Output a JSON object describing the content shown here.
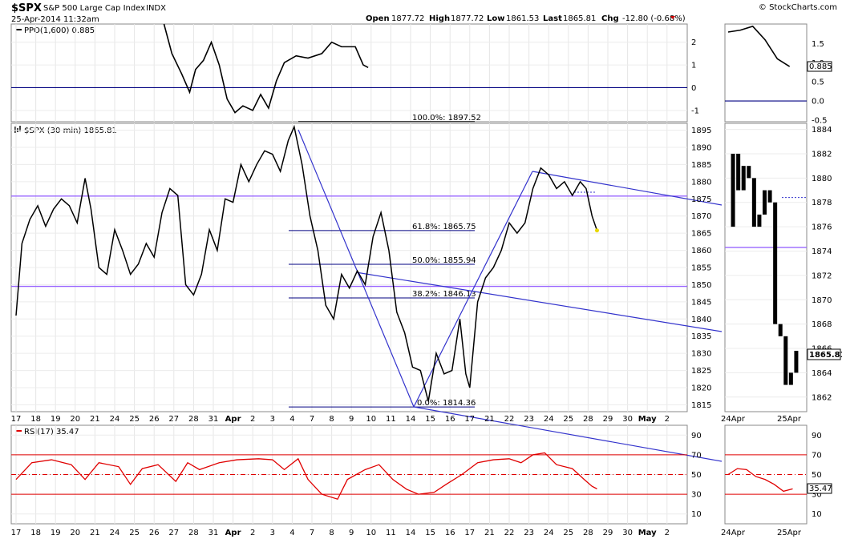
{
  "header": {
    "symbol": "$SPX",
    "name": "S&P 500 Large Cap Index",
    "exchange": "INDX",
    "date": "25-Apr-2014 11:32am",
    "copyright": "© StockCharts.com",
    "ohlc": {
      "open_label": "Open",
      "open": "1877.72",
      "high_label": "High",
      "high": "1877.72",
      "low_label": "Low",
      "low": "1861.53",
      "last_label": "Last",
      "last": "1865.81",
      "chg_label": "Chg",
      "chg": "-12.80 (-0.68%)"
    }
  },
  "colors": {
    "price": "#000000",
    "blue_lines": "#3333cc",
    "purple_lines": "#9966ff",
    "rsi": "#e00000",
    "ppo": "#000000"
  },
  "chart_data": [
    {
      "panel": "ppo",
      "type": "line",
      "legend": "PPO(1,600) 0.885",
      "value_label": "0.885",
      "ylim": [
        -1.5,
        2.8
      ],
      "yticks": [
        2,
        1,
        0,
        -1
      ],
      "side_yticks": [
        1.5,
        1.0,
        0.5,
        0.0,
        -0.5
      ],
      "series": [
        {
          "values": [
            [
              7.5,
              2.8
            ],
            [
              7.9,
              1.5
            ],
            [
              8.4,
              0.6
            ],
            [
              8.8,
              -0.2
            ],
            [
              9.1,
              0.8
            ],
            [
              9.5,
              1.2
            ],
            [
              9.9,
              2.0
            ],
            [
              10.3,
              1.0
            ],
            [
              10.7,
              -0.5
            ],
            [
              11.1,
              -1.1
            ],
            [
              11.5,
              -0.8
            ],
            [
              12.0,
              -1.0
            ],
            [
              12.4,
              -0.3
            ],
            [
              12.8,
              -0.9
            ],
            [
              13.2,
              0.3
            ],
            [
              13.6,
              1.1
            ],
            [
              14.2,
              1.4
            ],
            [
              14.8,
              1.3
            ],
            [
              15.5,
              1.5
            ],
            [
              16.0,
              2.0
            ],
            [
              16.5,
              1.8
            ],
            [
              17.2,
              1.8
            ],
            [
              17.6,
              1.0
            ],
            [
              17.85,
              0.885
            ]
          ]
        }
      ],
      "side_series": [
        {
          "values": [
            [
              0,
              1.8
            ],
            [
              1,
              1.85
            ],
            [
              2,
              1.95
            ],
            [
              3,
              1.6
            ],
            [
              4,
              1.1
            ],
            [
              5,
              0.9
            ]
          ]
        }
      ]
    },
    {
      "panel": "price",
      "type": "line",
      "legend": "$SPX (30 min) 1865.81",
      "last_value": "1865.81",
      "ylim": [
        1813,
        1897
      ],
      "yticks": [
        1895,
        1890,
        1885,
        1880,
        1875,
        1870,
        1865,
        1860,
        1855,
        1850,
        1845,
        1840,
        1835,
        1830,
        1825,
        1820,
        1815
      ],
      "side_ylim": [
        1860.8,
        1884.5
      ],
      "side_yticks": [
        1884,
        1882,
        1880,
        1878,
        1876,
        1874,
        1872,
        1870,
        1868,
        1866,
        1864,
        1862
      ],
      "x_labels": [
        "17",
        "18",
        "19",
        "20",
        "21",
        "24",
        "25",
        "26",
        "27",
        "28",
        "31",
        "Apr",
        "2",
        "3",
        "4",
        "7",
        "8",
        "9",
        "10",
        "11",
        "14",
        "15",
        "16",
        "17",
        "21",
        "22",
        "23",
        "24",
        "25",
        "28",
        "29",
        "30",
        "May",
        "2"
      ],
      "side_x_labels": [
        "24Apr",
        "25Apr"
      ],
      "series": [
        {
          "name": "$SPX",
          "values": [
            [
              0,
              1841
            ],
            [
              0.3,
              1862
            ],
            [
              0.7,
              1869
            ],
            [
              1.1,
              1873
            ],
            [
              1.5,
              1867
            ],
            [
              1.9,
              1872
            ],
            [
              2.3,
              1875
            ],
            [
              2.7,
              1873
            ],
            [
              3.1,
              1868
            ],
            [
              3.5,
              1881
            ],
            [
              3.8,
              1872
            ],
            [
              4.2,
              1855
            ],
            [
              4.6,
              1853
            ],
            [
              5.0,
              1866
            ],
            [
              5.4,
              1860
            ],
            [
              5.8,
              1853
            ],
            [
              6.2,
              1856
            ],
            [
              6.6,
              1862
            ],
            [
              7.0,
              1858
            ],
            [
              7.4,
              1871
            ],
            [
              7.8,
              1878
            ],
            [
              8.2,
              1876
            ],
            [
              8.6,
              1850
            ],
            [
              9.0,
              1847
            ],
            [
              9.4,
              1853
            ],
            [
              9.8,
              1866
            ],
            [
              10.2,
              1860
            ],
            [
              10.6,
              1875
            ],
            [
              11.0,
              1874
            ],
            [
              11.4,
              1885
            ],
            [
              11.8,
              1880
            ],
            [
              12.2,
              1885
            ],
            [
              12.6,
              1889
            ],
            [
              13.0,
              1888
            ],
            [
              13.4,
              1883
            ],
            [
              13.8,
              1892
            ],
            [
              14.1,
              1896
            ],
            [
              14.5,
              1885
            ],
            [
              14.9,
              1870
            ],
            [
              15.3,
              1860
            ],
            [
              15.7,
              1844
            ],
            [
              16.1,
              1840
            ],
            [
              16.5,
              1853
            ],
            [
              16.9,
              1849
            ],
            [
              17.3,
              1854
            ],
            [
              17.7,
              1850
            ],
            [
              18.1,
              1864
            ],
            [
              18.5,
              1871
            ],
            [
              18.9,
              1860
            ],
            [
              19.3,
              1842
            ],
            [
              19.7,
              1836
            ],
            [
              20.1,
              1826
            ],
            [
              20.5,
              1825
            ],
            [
              20.9,
              1816
            ],
            [
              21.3,
              1830
            ],
            [
              21.7,
              1824
            ],
            [
              22.1,
              1825
            ],
            [
              22.5,
              1840
            ],
            [
              22.8,
              1824
            ],
            [
              23.0,
              1820
            ],
            [
              23.4,
              1845
            ],
            [
              23.8,
              1852
            ],
            [
              24.2,
              1855
            ],
            [
              24.6,
              1860
            ],
            [
              25.0,
              1868
            ],
            [
              25.4,
              1865
            ],
            [
              25.8,
              1868
            ],
            [
              26.2,
              1878
            ],
            [
              26.6,
              1884
            ],
            [
              27.0,
              1882
            ],
            [
              27.4,
              1878
            ],
            [
              27.8,
              1880
            ],
            [
              28.2,
              1876
            ],
            [
              28.6,
              1880
            ],
            [
              28.9,
              1878
            ],
            [
              29.2,
              1870
            ],
            [
              29.45,
              1865.8
            ]
          ]
        }
      ],
      "side_series": [
        {
          "values": [
            [
              0,
              1876
            ],
            [
              0.5,
              1882
            ],
            [
              1,
              1879
            ],
            [
              1.5,
              1881
            ],
            [
              2,
              1880
            ],
            [
              2.5,
              1876
            ],
            [
              3,
              1877
            ],
            [
              3.5,
              1879
            ],
            [
              4,
              1878
            ],
            [
              4.5,
              1868
            ],
            [
              5,
              1867
            ],
            [
              5.5,
              1863
            ],
            [
              6,
              1864
            ],
            [
              6.5,
              1865.8
            ]
          ]
        }
      ],
      "horizontal_lines": [
        1875.8,
        1849.5
      ],
      "fib_levels": [
        {
          "label": "100.0%: 1897.52",
          "value": 1897.52
        },
        {
          "label": "61.8%: 1865.75",
          "value": 1865.75
        },
        {
          "label": "50.0%: 1855.94",
          "value": 1855.94
        },
        {
          "label": "38.2%: 1846.13",
          "value": 1846.13
        },
        {
          "label": "0.0%: 1814.36",
          "value": 1814.36
        }
      ]
    },
    {
      "panel": "rsi",
      "type": "line",
      "legend": "RSI(17) 35.47",
      "value_label": "35.47",
      "ylim": [
        0,
        100
      ],
      "yticks": [
        90,
        70,
        50,
        30,
        10
      ],
      "guides": [
        70,
        50,
        30
      ],
      "series": [
        {
          "name": "RSI",
          "values": [
            [
              0,
              45
            ],
            [
              0.8,
              62
            ],
            [
              1.8,
              65
            ],
            [
              2.8,
              60
            ],
            [
              3.5,
              45
            ],
            [
              4.2,
              62
            ],
            [
              5.2,
              58
            ],
            [
              5.8,
              40
            ],
            [
              6.4,
              56
            ],
            [
              7.2,
              60
            ],
            [
              8.1,
              43
            ],
            [
              8.7,
              62
            ],
            [
              9.3,
              55
            ],
            [
              10.3,
              62
            ],
            [
              11.2,
              65
            ],
            [
              12.3,
              66
            ],
            [
              13.0,
              65
            ],
            [
              13.6,
              55
            ],
            [
              14.3,
              66
            ],
            [
              14.8,
              45
            ],
            [
              15.5,
              30
            ],
            [
              16.3,
              25
            ],
            [
              16.8,
              45
            ],
            [
              17.7,
              55
            ],
            [
              18.4,
              60
            ],
            [
              19.1,
              45
            ],
            [
              19.8,
              35
            ],
            [
              20.4,
              30
            ],
            [
              21.2,
              32
            ],
            [
              21.8,
              40
            ],
            [
              22.6,
              50
            ],
            [
              23.4,
              62
            ],
            [
              24.2,
              65
            ],
            [
              25.0,
              66
            ],
            [
              25.6,
              62
            ],
            [
              26.2,
              70
            ],
            [
              26.8,
              72
            ],
            [
              27.4,
              60
            ],
            [
              28.2,
              56
            ],
            [
              28.8,
              45
            ],
            [
              29.2,
              38
            ],
            [
              29.45,
              35.47
            ]
          ]
        }
      ],
      "side_series": [
        {
          "values": [
            [
              0,
              50
            ],
            [
              1,
              56
            ],
            [
              2,
              55
            ],
            [
              3,
              48
            ],
            [
              4,
              45
            ],
            [
              5,
              40
            ],
            [
              6,
              33
            ],
            [
              7,
              35.47
            ]
          ]
        }
      ]
    }
  ]
}
